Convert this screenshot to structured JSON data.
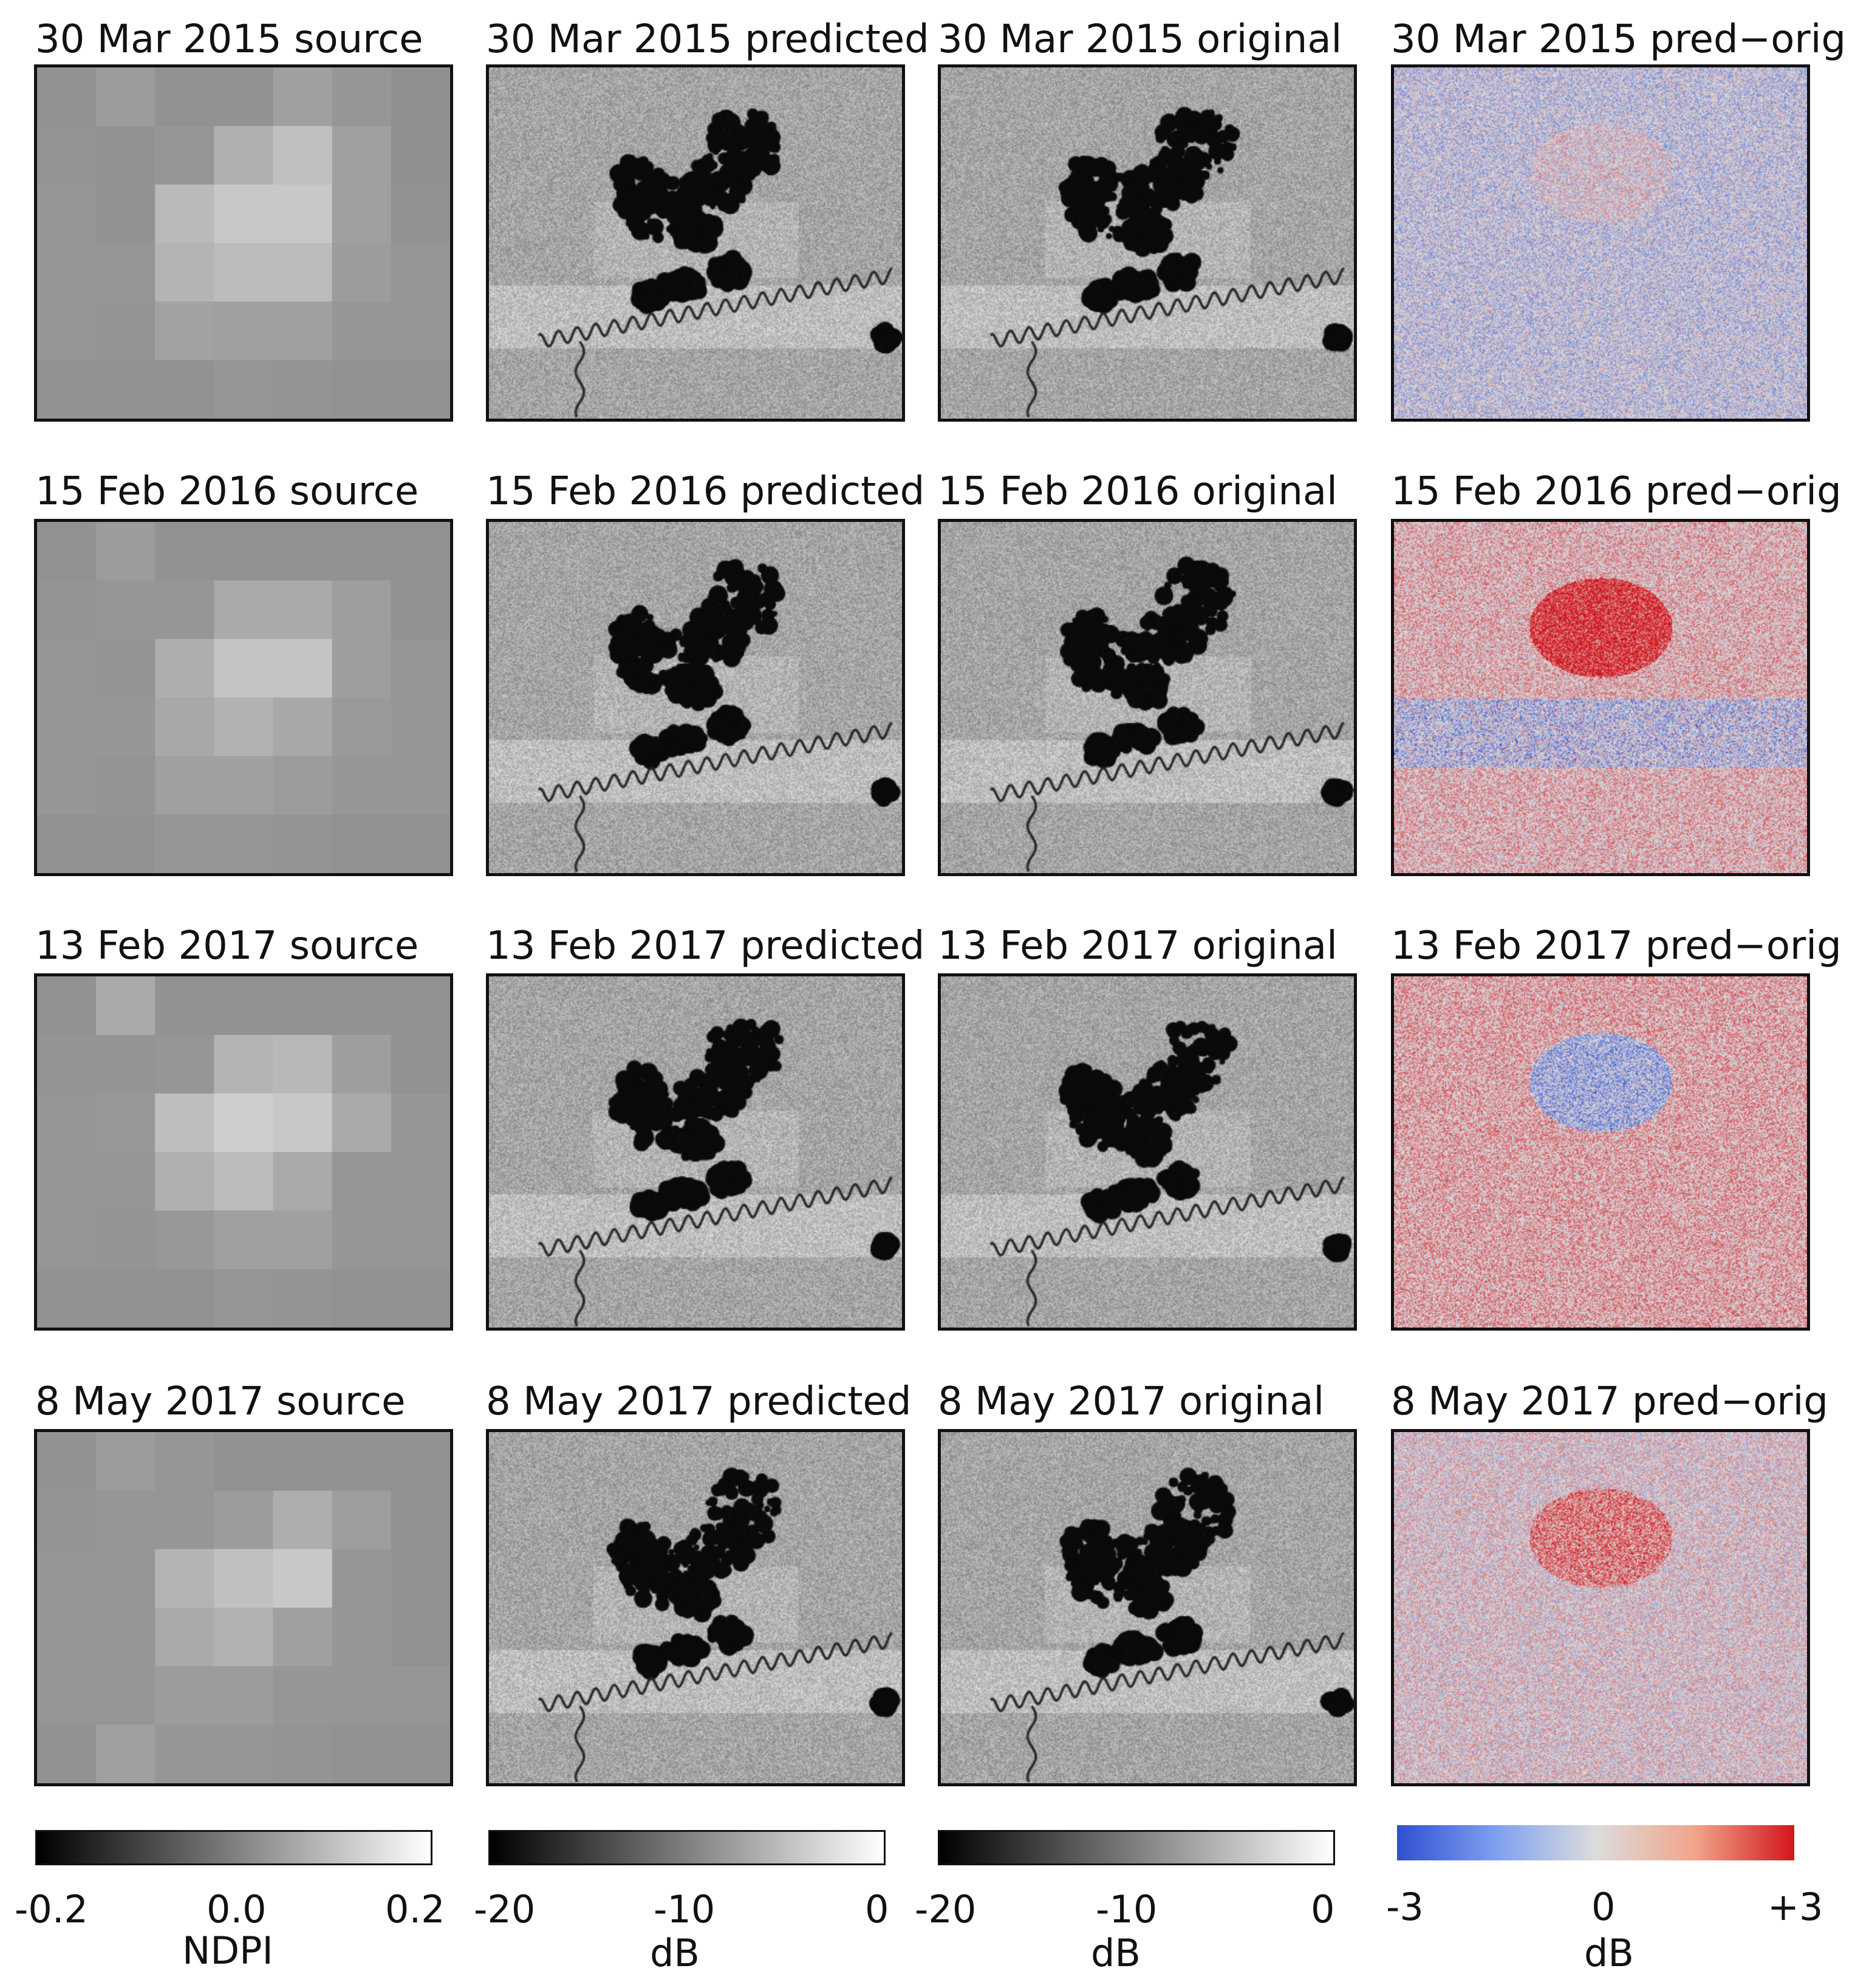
{
  "rows": [
    {
      "date": "30 Mar 2015",
      "titles": [
        "30 Mar 2015 source",
        "30 Mar 2015 predicted",
        "30 Mar 2015 original",
        "30 Mar 2015 pred−orig"
      ]
    },
    {
      "date": "15 Feb 2016",
      "titles": [
        "15 Feb 2016 source",
        "15 Feb 2016 predicted",
        "15 Feb 2016 original",
        "15 Feb 2016 pred−orig"
      ]
    },
    {
      "date": "13 Feb 2017",
      "titles": [
        "13 Feb 2017 source",
        "13 Feb 2017 predicted",
        "13 Feb 2017 original",
        "13 Feb 2017 pred−orig"
      ]
    },
    {
      "date": "8 May 2017",
      "titles": [
        "8 May 2017 source",
        "8 May 2017 predicted",
        "8 May 2017 original",
        "8 May 2017 pred−orig"
      ]
    }
  ],
  "colorbars": [
    {
      "name": "ndpi",
      "ticks": [
        "-0.2",
        "0.0",
        "0.2"
      ],
      "unit": "NDPI",
      "colormap": "gray",
      "range": [
        -0.2,
        0.2
      ]
    },
    {
      "name": "predicted-db",
      "ticks": [
        "-20",
        "-10",
        "0"
      ],
      "unit": "dB",
      "colormap": "gray",
      "range": [
        -20,
        0
      ]
    },
    {
      "name": "original-db",
      "ticks": [
        "-20",
        "-10",
        "0"
      ],
      "unit": "dB",
      "colormap": "gray",
      "range": [
        -20,
        0
      ]
    },
    {
      "name": "difference-db",
      "ticks": [
        "-3",
        "0",
        "+3"
      ],
      "unit": "dB",
      "colormap": "coolwarm",
      "range": [
        -3,
        3
      ]
    }
  ],
  "colors": {
    "cool": "#3a5fd6",
    "warm": "#d9242a",
    "neutral": "#dcdcdc",
    "water": "#0a0a0a"
  }
}
